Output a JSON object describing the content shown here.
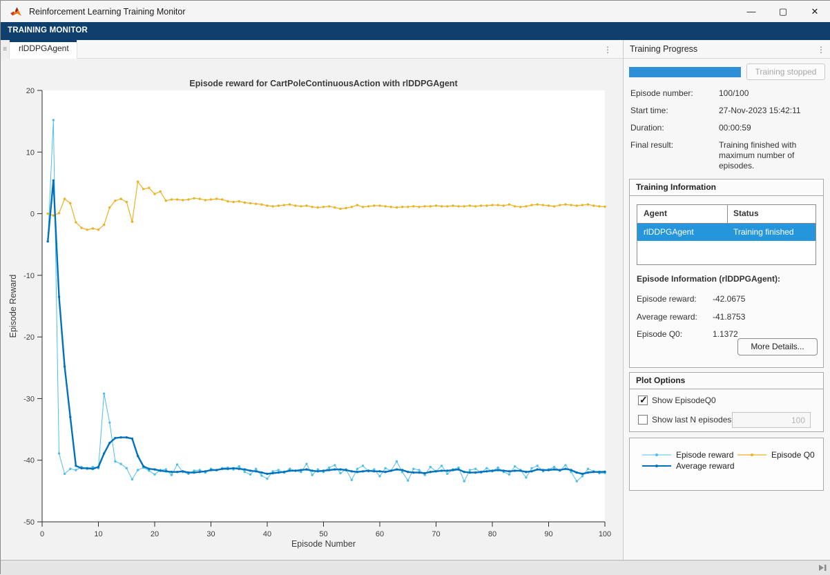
{
  "window": {
    "title": "Reinforcement Learning Training Monitor",
    "controls": {
      "minimize": "—",
      "maximize": "▢",
      "close": "✕"
    }
  },
  "ribbon": {
    "tab_label": "TRAINING MONITOR",
    "color": "#0e3f6d"
  },
  "document": {
    "tab_label": "rlDDPGAgent",
    "ellipsis": "⋮"
  },
  "panel": {
    "title": "Training Progress",
    "ellipsis": "⋮",
    "progress": {
      "percent": 100,
      "bar_color": "#2e8fd6",
      "status_button": "Training stopped"
    },
    "fields": [
      {
        "label": "Episode number:",
        "value": "100/100"
      },
      {
        "label": "Start time:",
        "value": "27-Nov-2023 15:42:11"
      },
      {
        "label": "Duration:",
        "value": "00:00:59"
      },
      {
        "label": "Final result:",
        "value": "Training finished with maximum number of episodes."
      }
    ],
    "training_information": {
      "title": "Training Information",
      "table": {
        "headers": [
          "Agent",
          "Status"
        ],
        "row": {
          "agent": "rlDDPGAgent",
          "status": "Training finished",
          "selected": true
        },
        "selection_color": "#2596dc"
      },
      "episode_info_title": "Episode Information (rlDDPGAgent):",
      "fields": [
        {
          "label": "Episode reward:",
          "value": "-42.0675"
        },
        {
          "label": "Average reward:",
          "value": "-41.8753"
        },
        {
          "label": "Episode Q0:",
          "value": "1.1372"
        }
      ],
      "more_details_button": "More Details..."
    },
    "plot_options": {
      "title": "Plot Options",
      "show_episode_q0": {
        "label": "Show EpisodeQ0",
        "checked": true
      },
      "show_last_n": {
        "label": "Show last N episodes",
        "checked": false,
        "value": "100"
      }
    }
  },
  "chart_data": {
    "type": "line",
    "title": "Episode reward for CartPoleContinuousAction with rlDDPGAgent",
    "xlabel": "Episode Number",
    "ylabel": "Episode Reward",
    "xlim": [
      0,
      100
    ],
    "ylim": [
      -50,
      20
    ],
    "xticks": [
      0,
      10,
      20,
      30,
      40,
      50,
      60,
      70,
      80,
      90,
      100
    ],
    "yticks": [
      -50,
      -40,
      -30,
      -20,
      -10,
      0,
      10,
      20
    ],
    "grid": false,
    "legend_position": "separate-panel-bottom-right",
    "x": [
      1,
      2,
      3,
      4,
      5,
      6,
      7,
      8,
      9,
      10,
      11,
      12,
      13,
      14,
      15,
      16,
      17,
      18,
      19,
      20,
      21,
      22,
      23,
      24,
      25,
      26,
      27,
      28,
      29,
      30,
      31,
      32,
      33,
      34,
      35,
      36,
      37,
      38,
      39,
      40,
      41,
      42,
      43,
      44,
      45,
      46,
      47,
      48,
      49,
      50,
      51,
      52,
      53,
      54,
      55,
      56,
      57,
      58,
      59,
      60,
      61,
      62,
      63,
      64,
      65,
      66,
      67,
      68,
      69,
      70,
      71,
      72,
      73,
      74,
      75,
      76,
      77,
      78,
      79,
      80,
      81,
      82,
      83,
      84,
      85,
      86,
      87,
      88,
      89,
      90,
      91,
      92,
      93,
      94,
      95,
      96,
      97,
      98,
      99,
      100
    ],
    "series": [
      {
        "name": "Episode reward",
        "color": "#4DBEEE",
        "width": 1,
        "values": [
          -4.5,
          15.2,
          -38.9,
          -42.2,
          -41.4,
          -41.6,
          -41.1,
          -41.4,
          -41.1,
          -41.3,
          -29.2,
          -33.9,
          -40.2,
          -40.6,
          -41.3,
          -43.1,
          -41.6,
          -41.2,
          -41.7,
          -42.3,
          -41.6,
          -41.5,
          -42.4,
          -40.7,
          -41.9,
          -42.2,
          -41.7,
          -41.6,
          -42.0,
          -41.4,
          -41.6,
          -41.3,
          -41.2,
          -41.5,
          -41.0,
          -41.9,
          -42.3,
          -41.4,
          -42.5,
          -43.0,
          -41.8,
          -41.6,
          -42.0,
          -41.4,
          -41.7,
          -41.9,
          -40.6,
          -42.4,
          -41.5,
          -41.9,
          -41.2,
          -40.8,
          -42.1,
          -41.5,
          -43.2,
          -41.4,
          -40.9,
          -41.8,
          -41.5,
          -42.6,
          -41.3,
          -41.7,
          -40.2,
          -41.9,
          -43.3,
          -41.4,
          -41.6,
          -42.4,
          -41.1,
          -41.8,
          -40.9,
          -42.2,
          -41.5,
          -41.2,
          -43.4,
          -41.6,
          -41.4,
          -42.0,
          -41.3,
          -41.8,
          -41.2,
          -41.9,
          -42.3,
          -41.0,
          -41.6,
          -42.8,
          -41.3,
          -40.9,
          -41.8,
          -41.5,
          -41.1,
          -41.7,
          -40.8,
          -41.9,
          -43.4,
          -42.6,
          -41.4,
          -41.8,
          -42.1,
          -42.07
        ]
      },
      {
        "name": "Average reward",
        "color": "#0072BD",
        "width": 2.4,
        "values": [
          -4.5,
          5.4,
          -13.5,
          -24.8,
          -33.0,
          -40.9,
          -41.3,
          -41.3,
          -41.4,
          -41.1,
          -38.9,
          -37.2,
          -36.4,
          -36.3,
          -36.3,
          -36.5,
          -39.3,
          -41.0,
          -41.4,
          -41.5,
          -41.7,
          -41.8,
          -41.9,
          -41.9,
          -41.8,
          -42.0,
          -42.0,
          -41.9,
          -41.8,
          -41.6,
          -41.6,
          -41.4,
          -41.4,
          -41.3,
          -41.4,
          -41.5,
          -41.7,
          -41.8,
          -42.0,
          -42.2,
          -42.1,
          -42.0,
          -41.9,
          -41.7,
          -41.7,
          -41.6,
          -41.5,
          -41.7,
          -41.8,
          -41.7,
          -41.6,
          -41.5,
          -41.5,
          -41.6,
          -41.8,
          -41.9,
          -41.8,
          -41.7,
          -41.8,
          -41.8,
          -41.9,
          -41.7,
          -41.5,
          -41.6,
          -41.9,
          -42.0,
          -42.0,
          -42.1,
          -41.9,
          -41.8,
          -41.7,
          -41.7,
          -41.6,
          -41.5,
          -41.9,
          -42.0,
          -42.0,
          -41.9,
          -41.8,
          -41.7,
          -41.6,
          -41.7,
          -41.8,
          -41.7,
          -41.7,
          -41.9,
          -41.8,
          -41.5,
          -41.6,
          -41.6,
          -41.5,
          -41.6,
          -41.4,
          -41.6,
          -42.0,
          -42.2,
          -42.0,
          -41.9,
          -41.9,
          -41.88
        ]
      },
      {
        "name": "Episode Q0",
        "color": "#EDB120",
        "width": 1.2,
        "values": [
          0.0,
          -0.3,
          0.1,
          2.4,
          1.7,
          -1.4,
          -2.3,
          -2.6,
          -2.4,
          -2.6,
          -1.8,
          1.0,
          2.1,
          2.4,
          1.9,
          -1.3,
          5.2,
          4.0,
          4.2,
          3.2,
          3.6,
          2.1,
          2.3,
          2.3,
          2.2,
          2.3,
          2.5,
          2.4,
          2.2,
          2.3,
          2.4,
          2.3,
          2.0,
          1.9,
          2.0,
          1.8,
          1.7,
          1.6,
          1.5,
          1.3,
          1.2,
          1.3,
          1.4,
          1.5,
          1.3,
          1.2,
          1.3,
          1.1,
          1.0,
          1.1,
          1.2,
          1.0,
          0.8,
          0.9,
          1.1,
          1.4,
          1.1,
          1.2,
          1.3,
          1.3,
          1.2,
          1.1,
          1.0,
          1.1,
          1.1,
          1.2,
          1.1,
          1.2,
          1.2,
          1.3,
          1.2,
          1.2,
          1.3,
          1.2,
          1.2,
          1.3,
          1.2,
          1.3,
          1.3,
          1.4,
          1.4,
          1.3,
          1.5,
          1.2,
          1.1,
          1.2,
          1.4,
          1.5,
          1.4,
          1.3,
          1.2,
          1.4,
          1.5,
          1.4,
          1.3,
          1.4,
          1.5,
          1.3,
          1.2,
          1.14
        ]
      }
    ]
  }
}
